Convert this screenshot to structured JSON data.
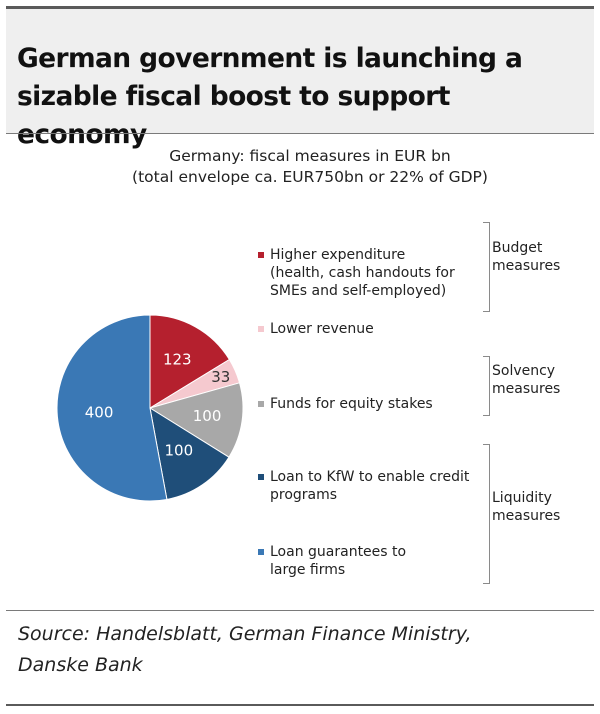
{
  "header": {
    "title": "German government is launching a sizable fiscal boost to support  economy"
  },
  "chart_data": {
    "type": "pie",
    "title": "Germany: fiscal measures in EUR bn",
    "subtitle": "(total envelope ca. EUR750bn or 22% of GDP)",
    "slices": [
      {
        "label": "Higher expenditure (health, cash handouts for SMEs and self-employed)",
        "value": 123,
        "value_label": "123",
        "color": "#b5202e",
        "label_color": "#ffffff"
      },
      {
        "label": "Lower revenue",
        "value": 33,
        "value_label": "33",
        "color": "#f5c9cf",
        "label_color": "#333333"
      },
      {
        "label": "Funds for equity stakes",
        "value": 100,
        "value_label": "100",
        "color": "#a8a8a8",
        "label_color": "#ffffff"
      },
      {
        "label": "Loan to KfW to enable credit programs",
        "value": 100,
        "value_label": "100",
        "color": "#1f4e79",
        "label_color": "#ffffff"
      },
      {
        "label": "Loan guarantees to large firms",
        "value": 400,
        "value_label": "400",
        "color": "#3a78b5",
        "label_color": "#ffffff"
      }
    ],
    "legend": [
      {
        "lines": [
          "Higher expenditure",
          "(health, cash handouts for",
          "SMEs and self-employed)"
        ],
        "color": "#b5202e"
      },
      {
        "lines": [
          "Lower revenue"
        ],
        "color": "#f5c9cf"
      },
      {
        "lines": [
          "Funds for equity stakes"
        ],
        "color": "#a8a8a8"
      },
      {
        "lines": [
          "Loan to KfW to enable credit",
          "programs"
        ],
        "color": "#1f4e79"
      },
      {
        "lines": [
          "Loan guarantees to",
          "large firms"
        ],
        "color": "#3a78b5"
      }
    ],
    "groups": [
      {
        "lines": [
          "Budget",
          "measures"
        ]
      },
      {
        "lines": [
          "Solvency",
          "measures"
        ]
      },
      {
        "lines": [
          "Liquidity",
          "measures"
        ]
      }
    ],
    "legend_position": "right"
  },
  "footer": {
    "source_line1": "Source: Handelsblatt, German Finance Ministry,",
    "source_line2": "Danske Bank"
  }
}
